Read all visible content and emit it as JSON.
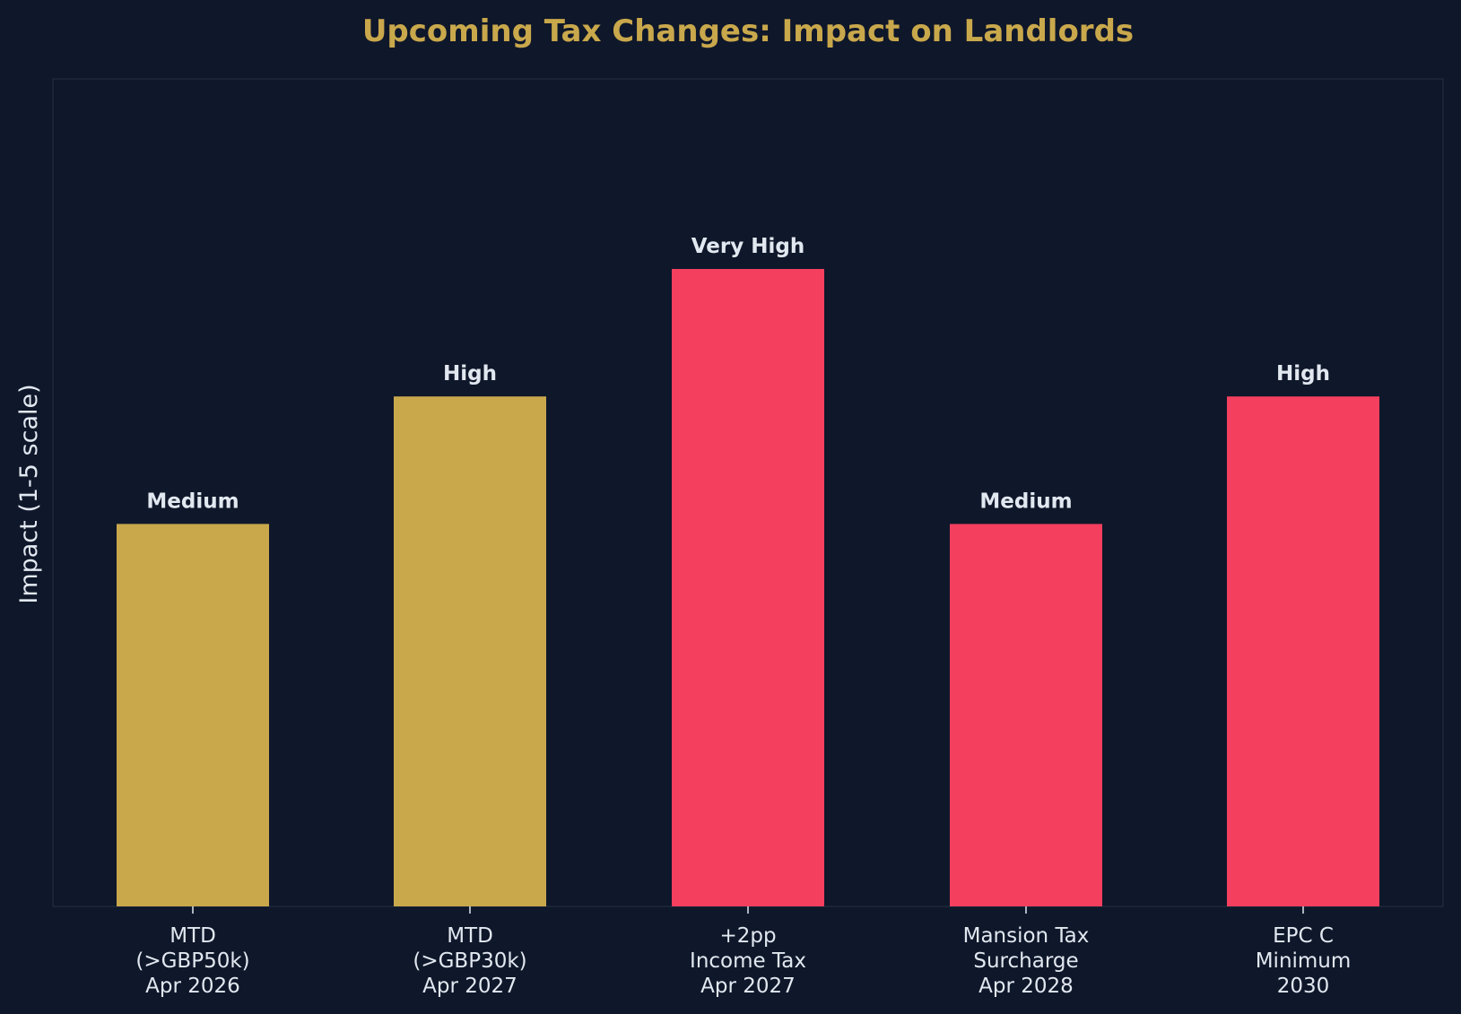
{
  "colors": {
    "background": "#0f172a",
    "frame": "#1e293b",
    "title": "#c9a84c",
    "text": "#e2e8f0",
    "gold": "#c9a84c",
    "red": "#f43f5e"
  },
  "chart_data": {
    "type": "bar",
    "title": "Upcoming Tax Changes: Impact on Landlords",
    "xlabel": "",
    "ylabel": "Impact (1-5 scale)",
    "ylim": [
      0,
      6.5
    ],
    "grid": false,
    "legend": null,
    "categories": [
      [
        "MTD",
        "(>GBP50k)",
        "Apr 2026"
      ],
      [
        "MTD",
        "(>GBP30k)",
        "Apr 2027"
      ],
      [
        "+2pp",
        "Income Tax",
        "Apr 2027"
      ],
      [
        "Mansion Tax",
        "Surcharge",
        "Apr 2028"
      ],
      [
        "EPC C",
        "Minimum",
        "2030"
      ]
    ],
    "values": [
      3,
      4,
      5,
      3,
      4
    ],
    "value_labels": [
      "Medium",
      "High",
      "Very High",
      "Medium",
      "High"
    ],
    "bar_colors": [
      "#c9a84c",
      "#c9a84c",
      "#f43f5e",
      "#f43f5e",
      "#f43f5e"
    ]
  }
}
